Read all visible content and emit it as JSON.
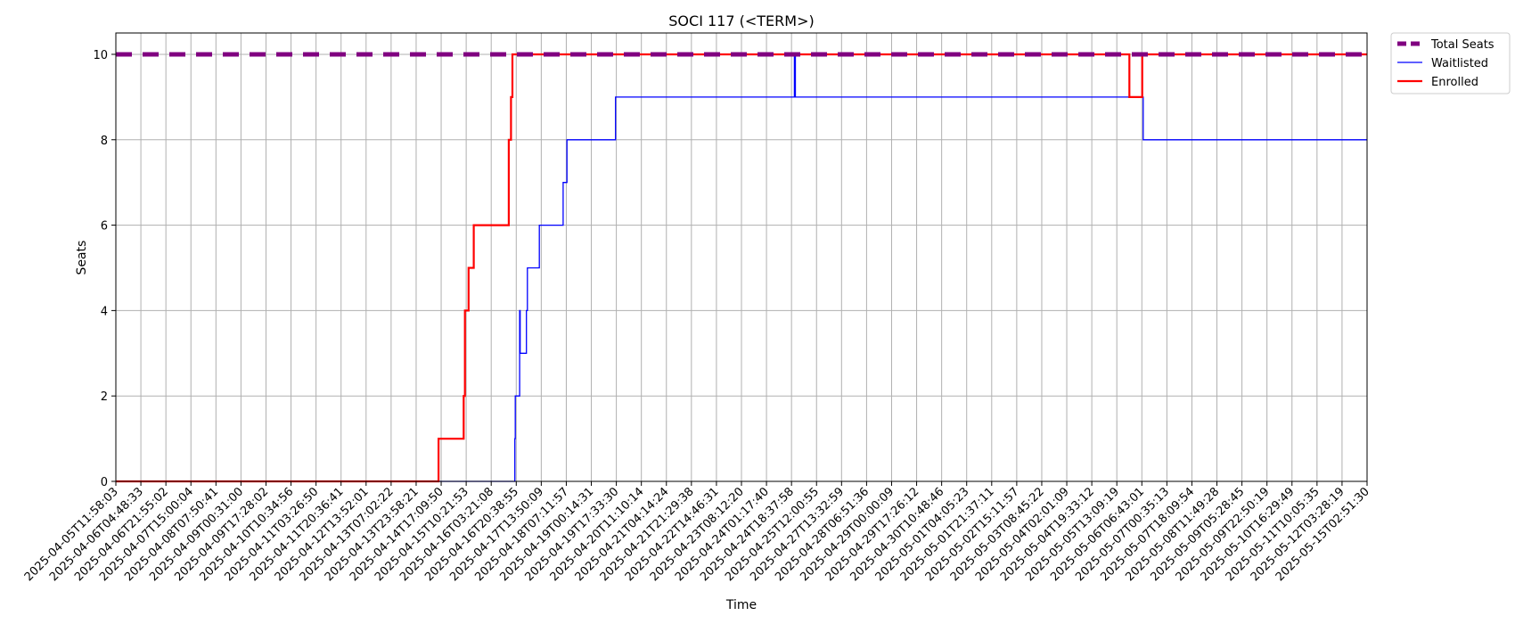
{
  "chart_data": {
    "type": "line",
    "title": "SOCI 117 (<TERM>)",
    "xlabel": "Time",
    "ylabel": "Seats",
    "ylim": [
      0,
      10.5
    ],
    "yticks": [
      0,
      2,
      4,
      6,
      8,
      10
    ],
    "grid": true,
    "legend_position": "outside-top-right",
    "x_ticks": [
      "2025-04-05T11:58:03",
      "2025-04-06T04:48:33",
      "2025-04-06T21:55:02",
      "2025-04-07T15:00:04",
      "2025-04-08T07:50:41",
      "2025-04-09T00:31:00",
      "2025-04-09T17:28:02",
      "2025-04-10T10:34:56",
      "2025-04-11T03:26:50",
      "2025-04-11T20:36:41",
      "2025-04-12T13:52:01",
      "2025-04-13T07:02:22",
      "2025-04-13T23:58:21",
      "2025-04-14T17:09:50",
      "2025-04-15T10:21:53",
      "2025-04-16T03:21:08",
      "2025-04-16T20:38:55",
      "2025-04-17T13:50:09",
      "2025-04-18T07:11:57",
      "2025-04-19T00:14:31",
      "2025-04-19T17:33:30",
      "2025-04-20T11:10:14",
      "2025-04-21T04:14:24",
      "2025-04-21T21:29:38",
      "2025-04-22T14:46:31",
      "2025-04-23T08:12:20",
      "2025-04-24T01:17:40",
      "2025-04-24T18:37:58",
      "2025-04-25T12:00:55",
      "2025-04-27T13:32:59",
      "2025-04-28T06:51:36",
      "2025-04-29T00:00:09",
      "2025-04-29T17:26:12",
      "2025-04-30T10:48:46",
      "2025-05-01T04:05:23",
      "2025-05-01T21:37:11",
      "2025-05-02T15:11:57",
      "2025-05-03T08:45:22",
      "2025-05-04T02:01:09",
      "2025-05-04T19:33:12",
      "2025-05-05T13:09:19",
      "2025-05-06T06:43:01",
      "2025-05-07T00:35:13",
      "2025-05-07T18:09:54",
      "2025-05-08T11:49:28",
      "2025-05-09T05:28:45",
      "2025-05-09T22:50:19",
      "2025-05-10T16:29:49",
      "2025-05-11T10:05:35",
      "2025-05-12T03:28:19",
      "2025-05-15T02:51:30"
    ],
    "x_range": [
      "2025-04-05T11:58:03",
      "2025-05-15T02:51:30"
    ],
    "series": [
      {
        "name": "Total Seats",
        "color": "#800080",
        "style": "dashed",
        "points": [
          [
            "2025-04-05T11:58:03",
            10
          ],
          [
            "2025-05-15T02:51:30",
            10
          ]
        ]
      },
      {
        "name": "Waitlisted",
        "color": "#0000ff",
        "style": "step",
        "points": [
          [
            "2025-04-05T11:58:03",
            0
          ],
          [
            "2025-04-16T19:40:00",
            0
          ],
          [
            "2025-04-16T19:40:00",
            1
          ],
          [
            "2025-04-16T20:00:00",
            1
          ],
          [
            "2025-04-16T20:00:00",
            2
          ],
          [
            "2025-04-16T23:00:00",
            2
          ],
          [
            "2025-04-16T23:00:00",
            4
          ],
          [
            "2025-04-16T23:20:00",
            4
          ],
          [
            "2025-04-16T23:20:00",
            3
          ],
          [
            "2025-04-17T03:40:00",
            3
          ],
          [
            "2025-04-17T03:40:00",
            4
          ],
          [
            "2025-04-17T04:20:00",
            4
          ],
          [
            "2025-04-17T04:20:00",
            5
          ],
          [
            "2025-04-17T12:30:00",
            5
          ],
          [
            "2025-04-17T12:30:00",
            6
          ],
          [
            "2025-04-18T05:00:00",
            6
          ],
          [
            "2025-04-18T05:00:00",
            7
          ],
          [
            "2025-04-18T07:40:00",
            7
          ],
          [
            "2025-04-18T07:40:00",
            8
          ],
          [
            "2025-04-19T17:00:00",
            8
          ],
          [
            "2025-04-19T17:00:00",
            9
          ],
          [
            "2025-04-24T20:40:00",
            9
          ],
          [
            "2025-04-24T20:40:00",
            10
          ],
          [
            "2025-04-24T21:20:00",
            10
          ],
          [
            "2025-04-24T21:20:00",
            9
          ],
          [
            "2025-05-06T07:40:00",
            9
          ],
          [
            "2025-05-06T07:40:00",
            8
          ],
          [
            "2025-05-15T02:51:30",
            8
          ]
        ]
      },
      {
        "name": "Enrolled",
        "color": "#ff0000",
        "style": "step",
        "points": [
          [
            "2025-04-05T11:58:03",
            0
          ],
          [
            "2025-04-14T15:20:00",
            0
          ],
          [
            "2025-04-14T15:20:00",
            1
          ],
          [
            "2025-04-15T08:40:00",
            1
          ],
          [
            "2025-04-15T08:40:00",
            2
          ],
          [
            "2025-04-15T09:30:00",
            2
          ],
          [
            "2025-04-15T09:30:00",
            4
          ],
          [
            "2025-04-15T12:00:00",
            4
          ],
          [
            "2025-04-15T12:00:00",
            5
          ],
          [
            "2025-04-15T15:30:00",
            5
          ],
          [
            "2025-04-15T15:30:00",
            6
          ],
          [
            "2025-04-16T15:30:00",
            6
          ],
          [
            "2025-04-16T15:30:00",
            8
          ],
          [
            "2025-04-16T17:00:00",
            8
          ],
          [
            "2025-04-16T17:00:00",
            9
          ],
          [
            "2025-04-16T18:00:00",
            9
          ],
          [
            "2025-04-16T18:00:00",
            10
          ],
          [
            "2025-05-05T22:00:00",
            10
          ],
          [
            "2025-05-05T22:00:00",
            9
          ],
          [
            "2025-05-06T07:00:00",
            9
          ],
          [
            "2025-05-06T07:00:00",
            10
          ],
          [
            "2025-05-15T02:51:30",
            10
          ]
        ]
      }
    ]
  }
}
